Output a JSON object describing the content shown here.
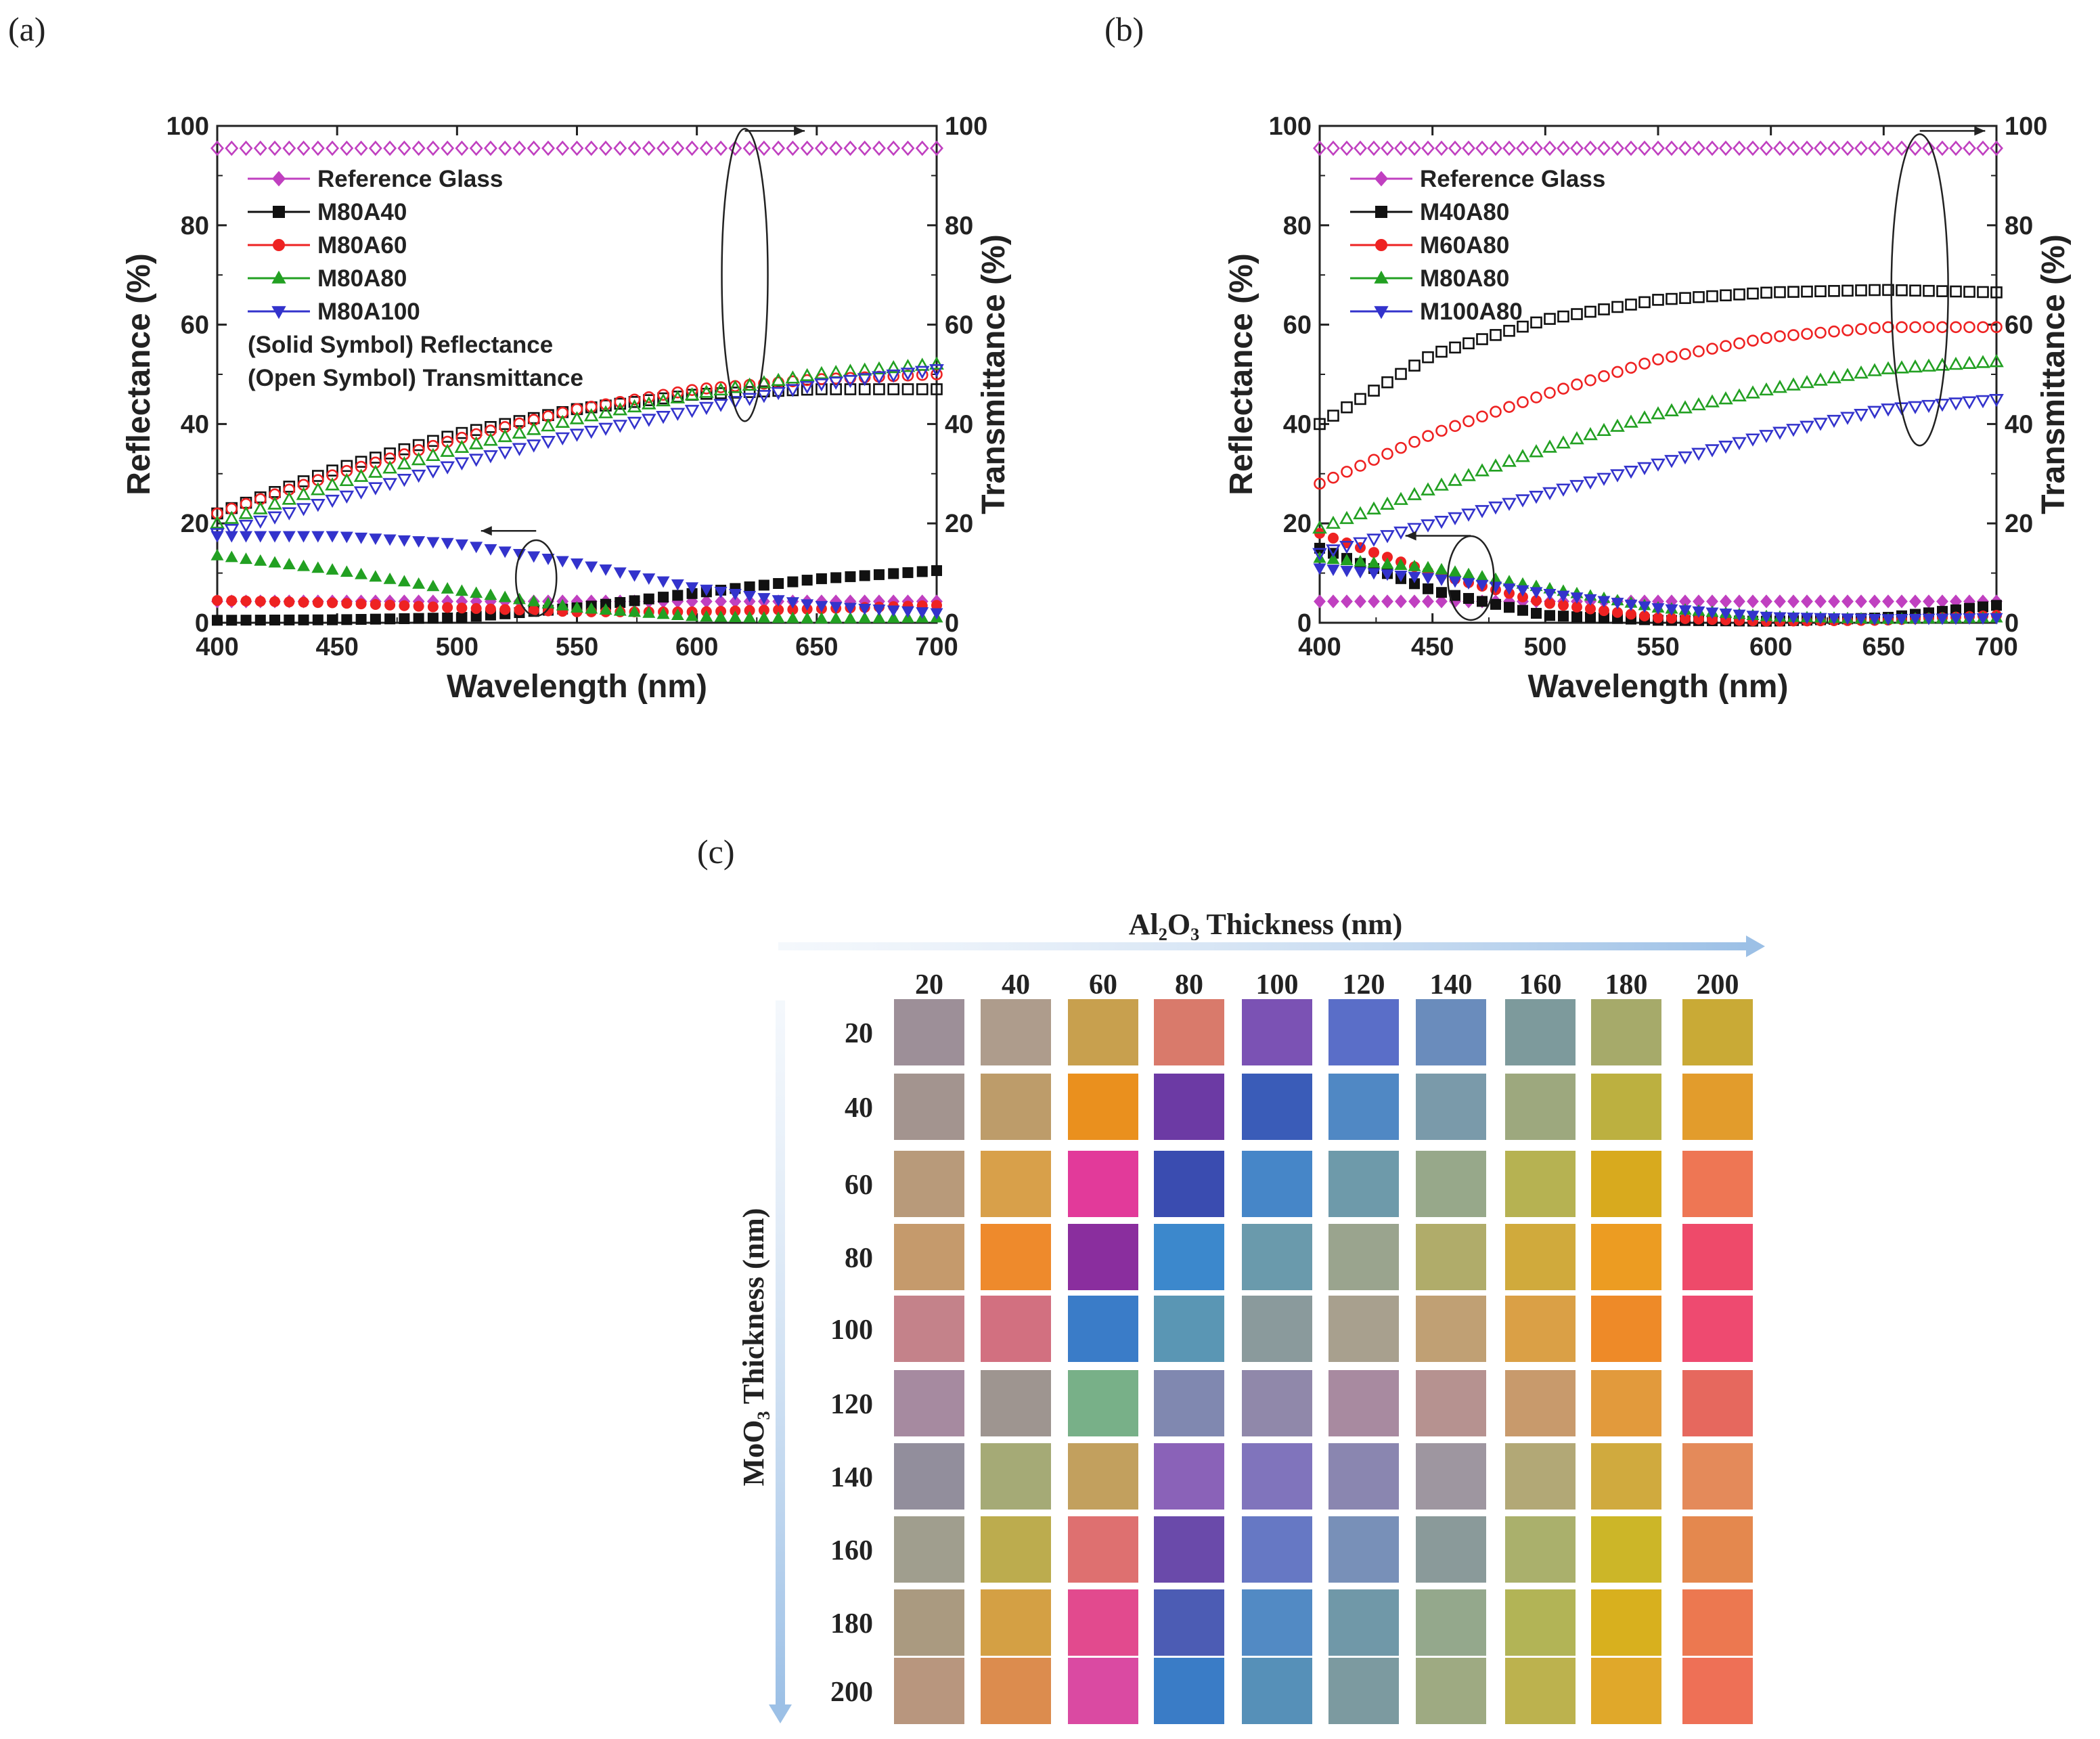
{
  "panels": {
    "a": "(a)",
    "b": "(b)",
    "c": "(c)"
  },
  "chart_data": [
    {
      "id": "a",
      "type": "scatter",
      "xlabel": "Wavelength (nm)",
      "ylabel": "Reflectance (%)",
      "y2label": "Transmittance (%)",
      "xlim": [
        400,
        700
      ],
      "ylim": [
        0,
        100
      ],
      "y2lim": [
        0,
        100
      ],
      "xticks": [
        "400",
        "450",
        "500",
        "550",
        "600",
        "650",
        "700"
      ],
      "yticks": [
        "0",
        "20",
        "40",
        "60",
        "80",
        "100"
      ],
      "y2ticks": [
        "0",
        "20",
        "40",
        "60",
        "80",
        "100"
      ],
      "grid": false,
      "legend_position": "top-left",
      "legend_notes": [
        "(Solid Symbol) Reflectance",
        "(Open Symbol) Transmittance"
      ],
      "series": [
        {
          "name": "Reference Glass",
          "color": "#c040c0",
          "marker": "diamond",
          "x": [
            400,
            450,
            500,
            550,
            600,
            650,
            700
          ],
          "reflectance": [
            4.3,
            4.3,
            4.3,
            4.3,
            4.3,
            4.3,
            4.3
          ],
          "transmittance": [
            95.5,
            95.5,
            95.5,
            95.5,
            95.5,
            95.5,
            95.5
          ]
        },
        {
          "name": "M80A40",
          "color": "#111111",
          "marker": "square",
          "x": [
            400,
            450,
            500,
            550,
            600,
            650,
            700
          ],
          "reflectance": [
            0.5,
            0.6,
            1.0,
            3.0,
            6.0,
            8.8,
            10.5
          ],
          "transmittance": [
            22,
            31,
            38,
            43,
            46,
            47,
            47
          ]
        },
        {
          "name": "M80A60",
          "color": "#ee2222",
          "marker": "circle",
          "x": [
            400,
            450,
            500,
            550,
            600,
            650,
            700
          ],
          "reflectance": [
            4.5,
            4.0,
            3.0,
            2.2,
            2.2,
            2.8,
            3.5
          ],
          "transmittance": [
            22,
            30,
            37,
            43,
            47,
            49,
            50
          ]
        },
        {
          "name": "M80A80",
          "color": "#22a022",
          "marker": "triangle-up",
          "x": [
            400,
            450,
            500,
            550,
            600,
            650,
            700
          ],
          "reflectance": [
            13.5,
            10.5,
            6.5,
            3.0,
            1.2,
            0.8,
            1.0
          ],
          "transmittance": [
            20,
            28,
            35,
            41,
            46,
            50,
            52
          ]
        },
        {
          "name": "M80A100",
          "color": "#3333cc",
          "marker": "triangle-down",
          "x": [
            400,
            450,
            500,
            550,
            600,
            650,
            700
          ],
          "reflectance": [
            17.5,
            17.5,
            16.0,
            12.0,
            7.0,
            3.5,
            2.0
          ],
          "transmittance": [
            18,
            25,
            32,
            38,
            43,
            48,
            51
          ]
        }
      ]
    },
    {
      "id": "b",
      "type": "scatter",
      "xlabel": "Wavelength (nm)",
      "ylabel": "Reflectance (%)",
      "y2label": "Transmittance (%)",
      "xlim": [
        400,
        700
      ],
      "ylim": [
        0,
        100
      ],
      "y2lim": [
        0,
        100
      ],
      "xticks": [
        "400",
        "450",
        "500",
        "550",
        "600",
        "650",
        "700"
      ],
      "yticks": [
        "0",
        "20",
        "40",
        "60",
        "80",
        "100"
      ],
      "y2ticks": [
        "0",
        "20",
        "40",
        "60",
        "80",
        "100"
      ],
      "grid": false,
      "legend_position": "top-left",
      "series": [
        {
          "name": "Reference Glass",
          "color": "#c040c0",
          "marker": "diamond",
          "x": [
            400,
            450,
            500,
            550,
            600,
            650,
            700
          ],
          "reflectance": [
            4.3,
            4.3,
            4.3,
            4.3,
            4.3,
            4.3,
            4.3
          ],
          "transmittance": [
            95.5,
            95.5,
            95.5,
            95.5,
            95.5,
            95.5,
            95.5
          ]
        },
        {
          "name": "M40A80",
          "color": "#111111",
          "marker": "square",
          "x": [
            400,
            450,
            500,
            550,
            600,
            650,
            700
          ],
          "reflectance": [
            15,
            6.5,
            1.5,
            0.5,
            0.3,
            1.0,
            3.5
          ],
          "transmittance": [
            40,
            54,
            61,
            65,
            66.5,
            67,
            66.5
          ]
        },
        {
          "name": "M60A80",
          "color": "#ee2222",
          "marker": "circle",
          "x": [
            400,
            450,
            500,
            550,
            600,
            650,
            700
          ],
          "reflectance": [
            18,
            10,
            4,
            1.0,
            0.3,
            0.5,
            1.5
          ],
          "transmittance": [
            28,
            38,
            46,
            53,
            57.5,
            59.5,
            59.5
          ]
        },
        {
          "name": "M80A80",
          "color": "#22a022",
          "marker": "triangle-up",
          "x": [
            400,
            450,
            500,
            550,
            600,
            650,
            700
          ],
          "reflectance": [
            13,
            11,
            7,
            3,
            1.2,
            0.7,
            1.0
          ],
          "transmittance": [
            19,
            27,
            35,
            42,
            47,
            51,
            52.5
          ]
        },
        {
          "name": "M100A80",
          "color": "#3333cc",
          "marker": "triangle-down",
          "x": [
            400,
            450,
            500,
            550,
            600,
            650,
            700
          ],
          "reflectance": [
            11,
            9,
            6,
            3,
            1.2,
            0.8,
            1.0
          ],
          "transmittance": [
            14,
            20,
            26,
            32,
            38,
            43,
            45
          ]
        }
      ]
    },
    {
      "id": "c",
      "type": "heatmap",
      "xlabel": "Al₂O₃ Thickness (nm)",
      "ylabel": "MoO₃ Thickness (nm)",
      "x": [
        "20",
        "40",
        "60",
        "80",
        "100",
        "120",
        "140",
        "160",
        "180",
        "200"
      ],
      "y": [
        "20",
        "40",
        "60",
        "80",
        "100",
        "120",
        "140",
        "160",
        "180",
        "200"
      ],
      "cells": [
        [
          "#9d8f98",
          "#ae9c8c",
          "#c8a04e",
          "#d97a6b",
          "#7b52b4",
          "#5a6ec8",
          "#6a8cbc",
          "#7d9a9c",
          "#a6aa6a",
          "#c9aa36"
        ],
        [
          "#a3948f",
          "#bd9c6a",
          "#ea901e",
          "#6c3aa4",
          "#3a5cb8",
          "#5088c4",
          "#7a9aaa",
          "#9da87e",
          "#bcb040",
          "#e29c2c"
        ],
        [
          "#b89a7a",
          "#d8a04a",
          "#e23a9a",
          "#3a4cb0",
          "#4686c8",
          "#6e9aaa",
          "#97a88a",
          "#b6b252",
          "#d8aa1e",
          "#ee7654"
        ],
        [
          "#c59a6c",
          "#ee8a2c",
          "#8a2e9e",
          "#3c88cc",
          "#6a9aac",
          "#9aa48e",
          "#b0ac6a",
          "#d0aa3c",
          "#ec9c22",
          "#ee4a6a"
        ],
        [
          "#c4828a",
          "#d27080",
          "#3a7cc8",
          "#5a96b4",
          "#8a9a9c",
          "#a8a08e",
          "#c0a074",
          "#daa046",
          "#ee8a28",
          "#ee4a70"
        ],
        [
          "#a68aa0",
          "#9e9590",
          "#78b088",
          "#8088b0",
          "#9088aa",
          "#a88aa0",
          "#b69290",
          "#c89a6c",
          "#e29a3c",
          "#e6685e"
        ],
        [
          "#928e9c",
          "#a5aa76",
          "#c2a05e",
          "#8a62b8",
          "#8074bc",
          "#8a86b0",
          "#9e96a0",
          "#b2a876",
          "#d0aa3e",
          "#e48a5a"
        ],
        [
          "#a09e8e",
          "#bcac4e",
          "#de7070",
          "#6a4aaa",
          "#6678c4",
          "#7890b8",
          "#8a9a9a",
          "#aab06c",
          "#ccb628",
          "#e4884e"
        ],
        [
          "#aa9a80",
          "#d4a044",
          "#e24a8e",
          "#4c5cb4",
          "#528ac4",
          "#7098a8",
          "#94a88c",
          "#b2b456",
          "#d8b01e",
          "#ec7850"
        ],
        [
          "#b8967e",
          "#dc8c4e",
          "#da4aa2",
          "#3a7cc6",
          "#5690b8",
          "#7c9aa0",
          "#9eaa82",
          "#bcb24e",
          "#e0a82a",
          "#ee7056"
        ]
      ]
    }
  ]
}
